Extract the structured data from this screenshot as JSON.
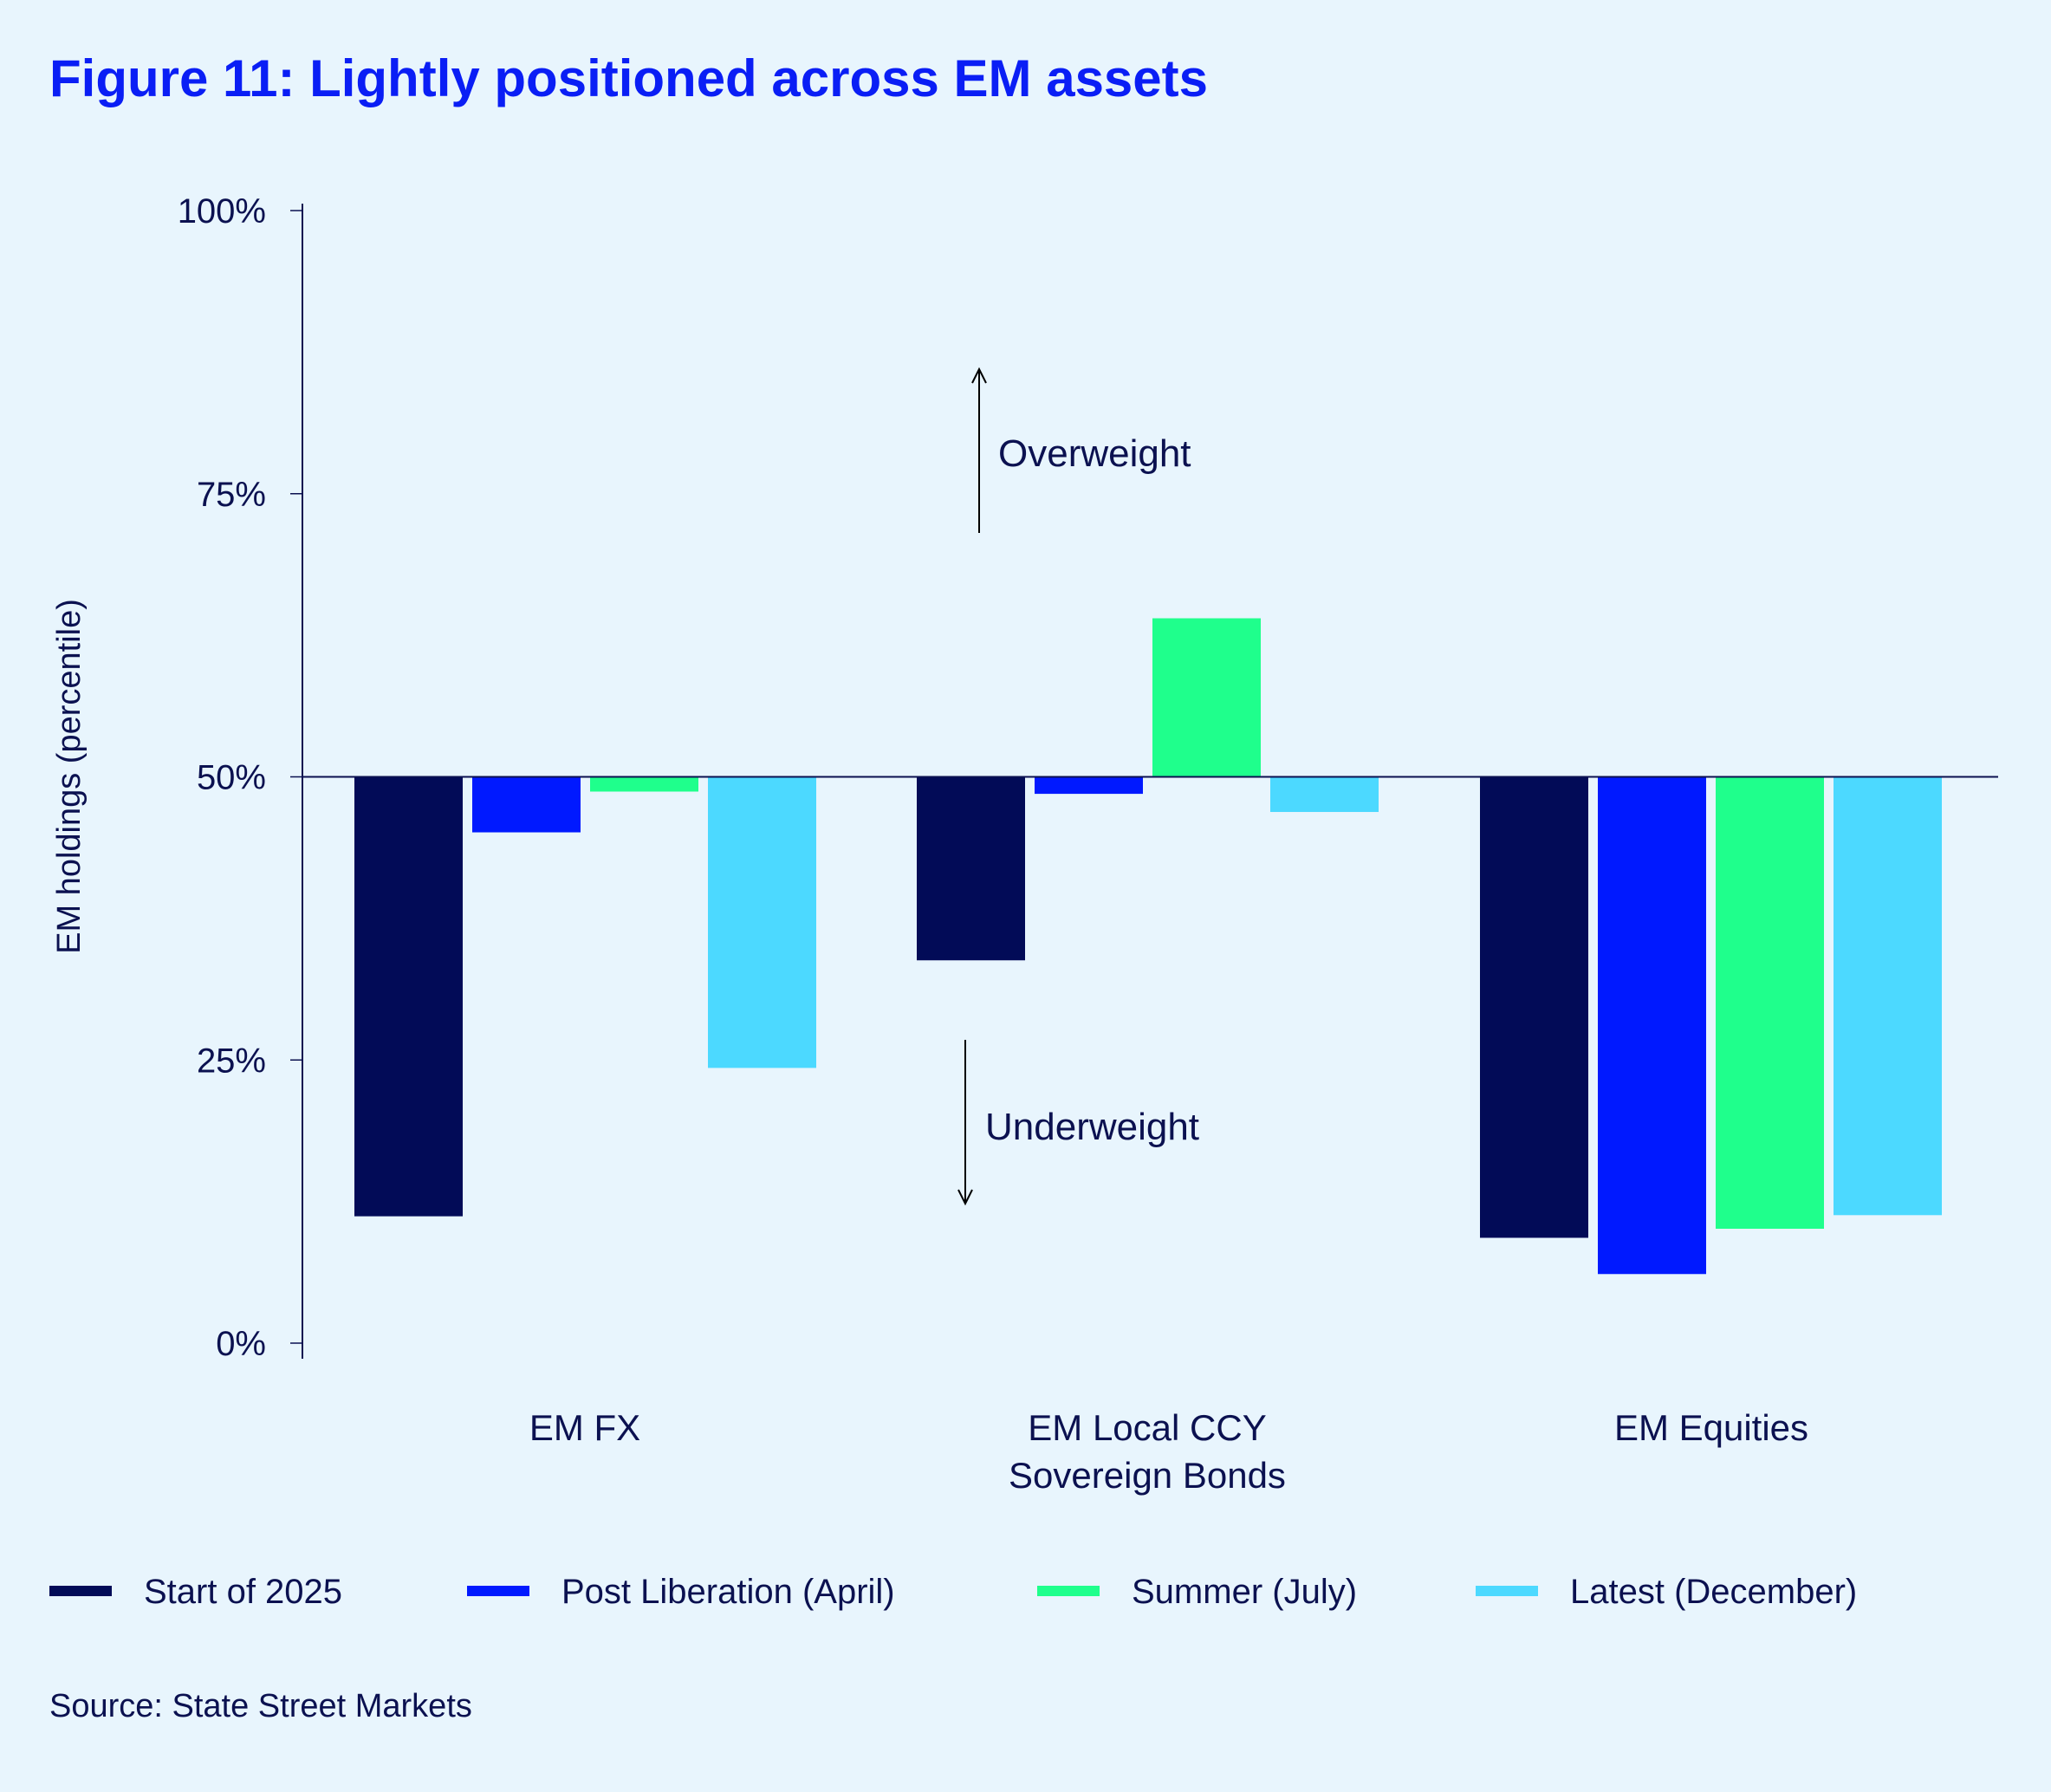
{
  "title": "Figure 11: Lightly positioned across EM assets",
  "source": "Source: State Street Markets",
  "chart_data": {
    "type": "bar",
    "title": "Figure 11: Lightly positioned across EM assets",
    "ylabel": "EM holdings (percentile)",
    "xlabel": "",
    "ylim": [
      0,
      100
    ],
    "baseline": 50,
    "yticks": [
      "0%",
      "25%",
      "50%",
      "75%",
      "100%"
    ],
    "ytick_values": [
      0,
      25,
      50,
      75,
      100
    ],
    "categories": [
      [
        "EM FX"
      ],
      [
        "EM Local CCY",
        "Sovereign Bonds"
      ],
      [
        "EM Equities"
      ]
    ],
    "series": [
      {
        "name": "Start of 2025",
        "color": "#020b57",
        "values": [
          11.2,
          33.8,
          9.3
        ]
      },
      {
        "name": "Post Liberation (April)",
        "color": "#0019ff",
        "values": [
          45.1,
          48.5,
          6.1
        ]
      },
      {
        "name": "Summer (July)",
        "color": "#1fff8c",
        "values": [
          48.7,
          64.0,
          10.1
        ]
      },
      {
        "name": "Latest (December)",
        "color": "#4cd9ff",
        "values": [
          24.3,
          46.9,
          11.3
        ]
      }
    ],
    "annotations": [
      "Overweight",
      "Underweight"
    ],
    "legend": "bottom",
    "grid": false
  }
}
